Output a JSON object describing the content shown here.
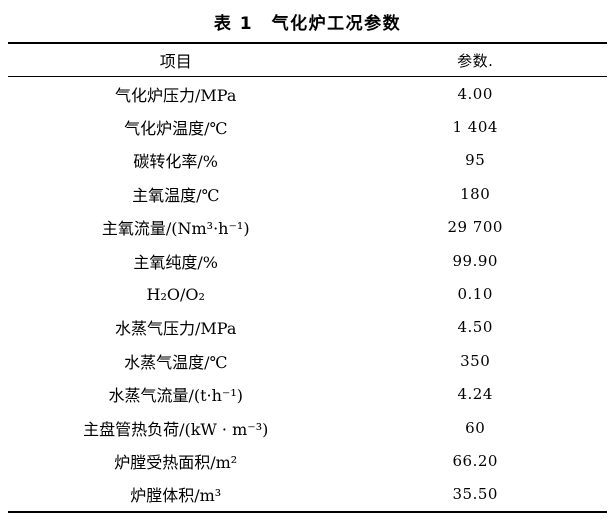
{
  "table": {
    "caption": "表 1　气化炉工况参数",
    "columns": {
      "item": "项目",
      "value": "参数."
    },
    "rows": [
      {
        "item": "气化炉压力/MPa",
        "value": "4.00"
      },
      {
        "item": "气化炉温度/℃",
        "value": "1 404"
      },
      {
        "item": "碳转化率/%",
        "value": "95"
      },
      {
        "item": "主氧温度/℃",
        "value": "180"
      },
      {
        "item": "主氧流量/(Nm³·h⁻¹)",
        "value": "29 700"
      },
      {
        "item": "主氧纯度/%",
        "value": "99.90"
      },
      {
        "item": "H₂O/O₂",
        "value": "0.10"
      },
      {
        "item": "水蒸气压力/MPa",
        "value": "4.50"
      },
      {
        "item": "水蒸气温度/℃",
        "value": "350"
      },
      {
        "item": "水蒸气流量/(t·h⁻¹)",
        "value": "4.24"
      },
      {
        "item": "主盘管热负荷/(kW · m⁻³)",
        "value": "60"
      },
      {
        "item": "炉膛受热面积/m²",
        "value": "66.20"
      },
      {
        "item": "炉膛体积/m³",
        "value": "35.50"
      }
    ]
  }
}
